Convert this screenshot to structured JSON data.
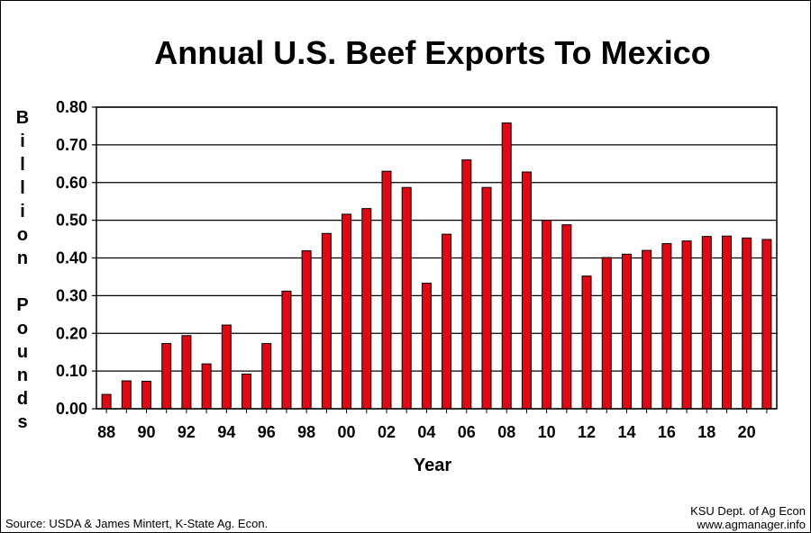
{
  "chart_data": {
    "type": "bar",
    "title": "Annual U.S. Beef Exports To Mexico",
    "xlabel": "Year",
    "ylabel": "Billion Pounds",
    "ylim": [
      0,
      0.8
    ],
    "yticks": [
      "0.00",
      "0.10",
      "0.20",
      "0.30",
      "0.40",
      "0.50",
      "0.60",
      "0.70",
      "0.80"
    ],
    "grid": true,
    "categories": [
      "88",
      "89",
      "90",
      "91",
      "92",
      "93",
      "94",
      "95",
      "96",
      "97",
      "98",
      "99",
      "00",
      "01",
      "02",
      "03",
      "04",
      "05",
      "06",
      "07",
      "08",
      "09",
      "10",
      "11",
      "12",
      "13",
      "14",
      "15",
      "16",
      "17",
      "18",
      "19",
      "20",
      "21"
    ],
    "xtick_labels": [
      "88",
      "90",
      "92",
      "94",
      "96",
      "98",
      "00",
      "02",
      "04",
      "06",
      "08",
      "10",
      "12",
      "14",
      "16",
      "18",
      "20"
    ],
    "values": [
      0.038,
      0.074,
      0.073,
      0.173,
      0.194,
      0.119,
      0.222,
      0.092,
      0.173,
      0.312,
      0.419,
      0.465,
      0.516,
      0.531,
      0.63,
      0.587,
      0.333,
      0.463,
      0.66,
      0.587,
      0.758,
      0.628,
      0.5,
      0.488,
      0.352,
      0.401,
      0.41,
      0.42,
      0.438,
      0.445,
      0.457,
      0.458,
      0.453,
      0.449
    ],
    "bar_color": "#e30613"
  },
  "footer": {
    "source": "Source:  USDA & James Mintert, K-State Ag. Econ.",
    "credit_line1": "KSU Dept. of Ag Econ",
    "credit_line2": "www.agmanager.info"
  }
}
